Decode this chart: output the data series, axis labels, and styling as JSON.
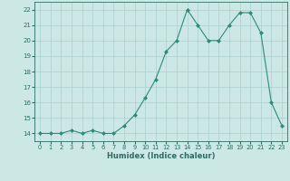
{
  "x": [
    0,
    1,
    2,
    3,
    4,
    5,
    6,
    7,
    8,
    9,
    10,
    11,
    12,
    13,
    14,
    15,
    16,
    17,
    18,
    19,
    20,
    21,
    22,
    23
  ],
  "y": [
    14,
    14,
    14,
    14.2,
    14,
    14.2,
    14,
    14,
    14.5,
    15.2,
    16.3,
    17.5,
    19.3,
    20,
    22,
    21,
    20,
    20,
    21,
    21.8,
    21.8,
    20.5,
    16,
    14.5
  ],
  "xlabel": "Humidex (Indice chaleur)",
  "xlim": [
    -0.5,
    23.5
  ],
  "ylim": [
    13.5,
    22.5
  ],
  "yticks": [
    14,
    15,
    16,
    17,
    18,
    19,
    20,
    21,
    22
  ],
  "xticks": [
    0,
    1,
    2,
    3,
    4,
    5,
    6,
    7,
    8,
    9,
    10,
    11,
    12,
    13,
    14,
    15,
    16,
    17,
    18,
    19,
    20,
    21,
    22,
    23
  ],
  "line_color": "#2e8b74",
  "marker_color": "#2e8b74",
  "bg_color": "#cce8e4",
  "grid_color": "#b0d4d0",
  "text_color": "#2e6b5e"
}
